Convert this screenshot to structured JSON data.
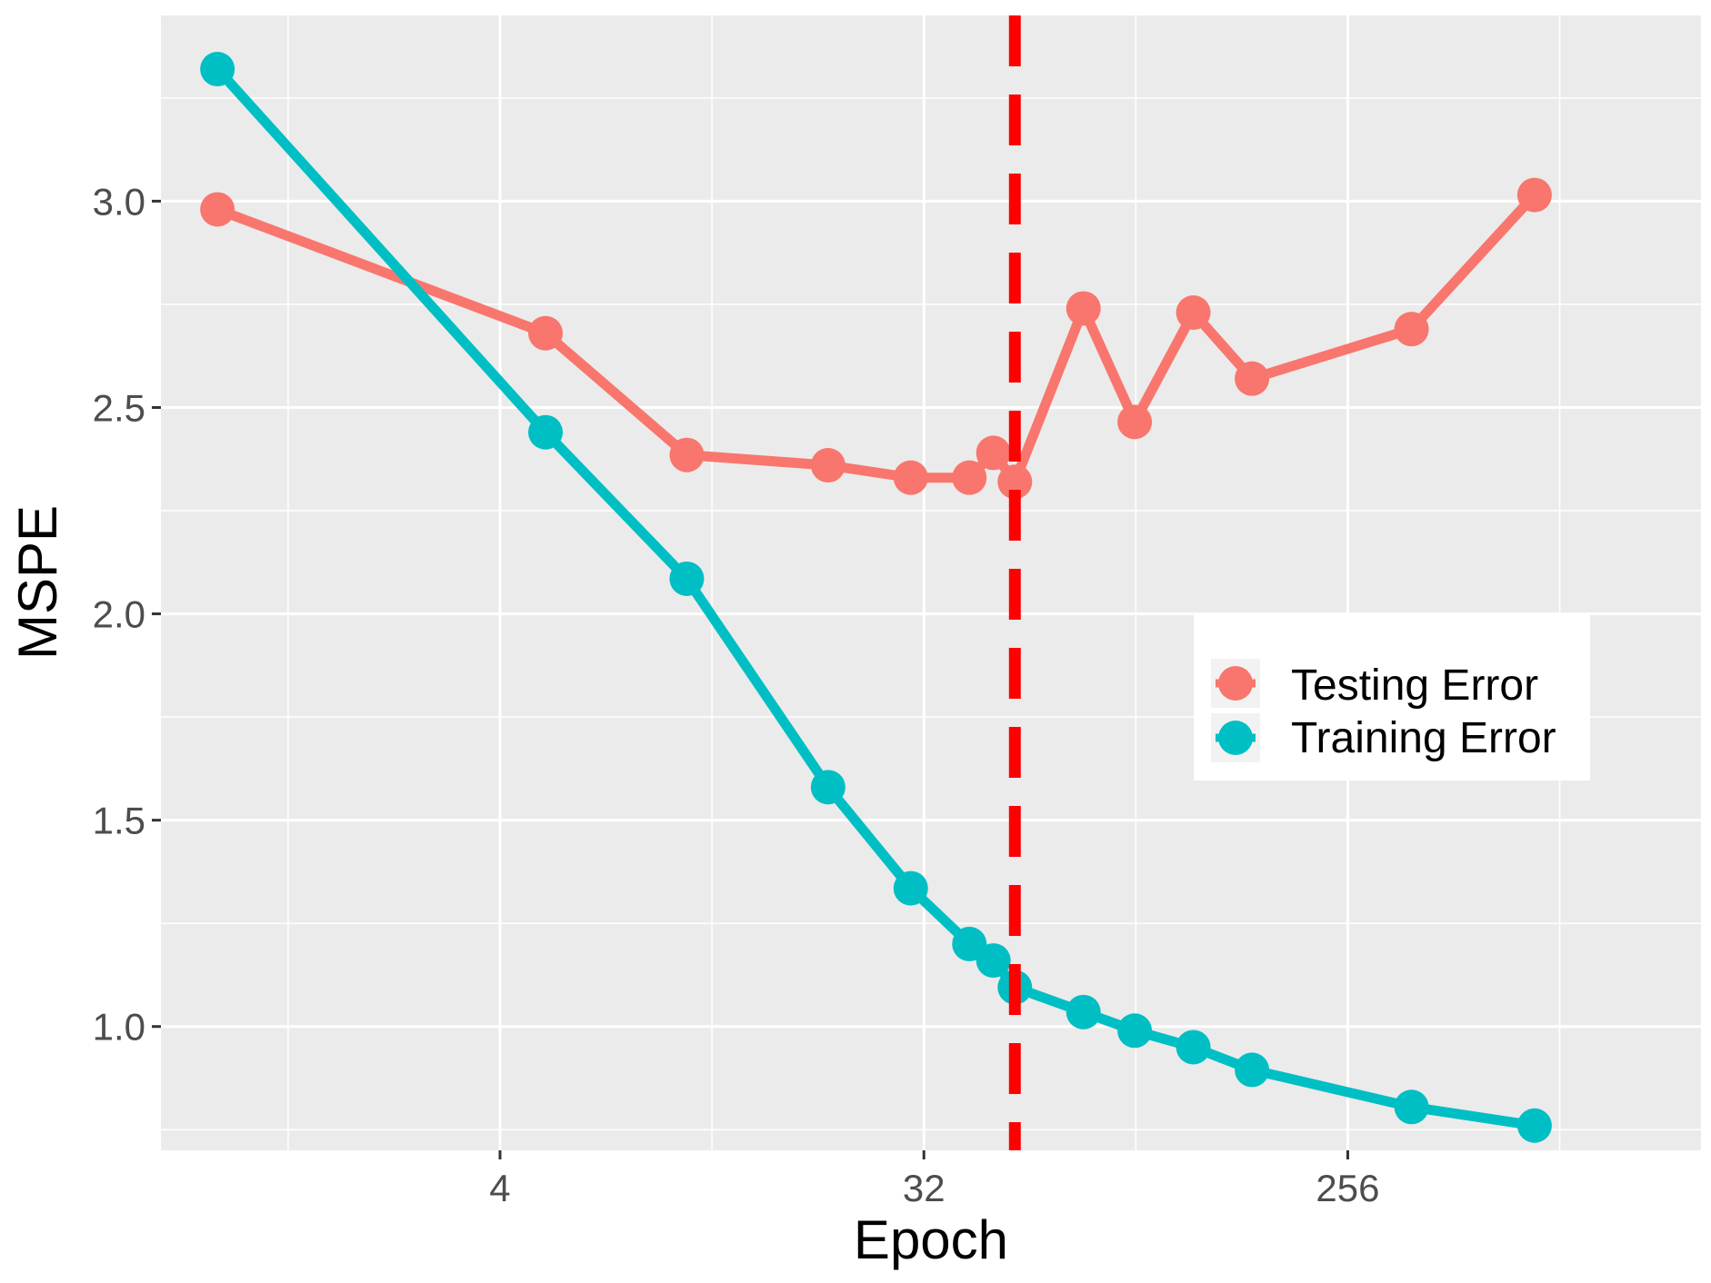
{
  "chart_data": {
    "type": "line",
    "title": "",
    "xlabel": "Epoch",
    "ylabel": "MSPE",
    "x_scale": "log2",
    "x_ticks": [
      4,
      32,
      256
    ],
    "x_tick_labels": [
      "4",
      "32",
      "256"
    ],
    "y_ticks": [
      1.0,
      1.5,
      2.0,
      2.5,
      3.0
    ],
    "y_tick_labels": [
      "1.0",
      "1.5",
      "2.0",
      "2.5",
      "3.0"
    ],
    "xlim_log2": [
      -0.4,
      10.5
    ],
    "ylim": [
      0.7,
      3.45
    ],
    "grid": true,
    "vline": {
      "x": 50,
      "color": "#ff0000",
      "style": "dashed"
    },
    "legend": {
      "placement": "right",
      "entries": [
        "Testing Error",
        "Training Error"
      ]
    },
    "series": [
      {
        "name": "Testing Error",
        "color": "#F8766D",
        "x": [
          1,
          5,
          10,
          20,
          30,
          40,
          45,
          50,
          70,
          90,
          120,
          160,
          350,
          640
        ],
        "y": [
          2.98,
          2.68,
          2.385,
          2.36,
          2.33,
          2.33,
          2.39,
          2.32,
          2.74,
          2.465,
          2.73,
          2.57,
          2.69,
          3.015
        ]
      },
      {
        "name": "Training Error",
        "color": "#00BFC4",
        "x": [
          1,
          5,
          10,
          20,
          30,
          40,
          45,
          50,
          70,
          90,
          120,
          160,
          350,
          640
        ],
        "y": [
          3.32,
          2.44,
          2.085,
          1.58,
          1.335,
          1.2,
          1.16,
          1.095,
          1.035,
          0.99,
          0.95,
          0.895,
          0.805,
          0.76
        ]
      }
    ]
  }
}
